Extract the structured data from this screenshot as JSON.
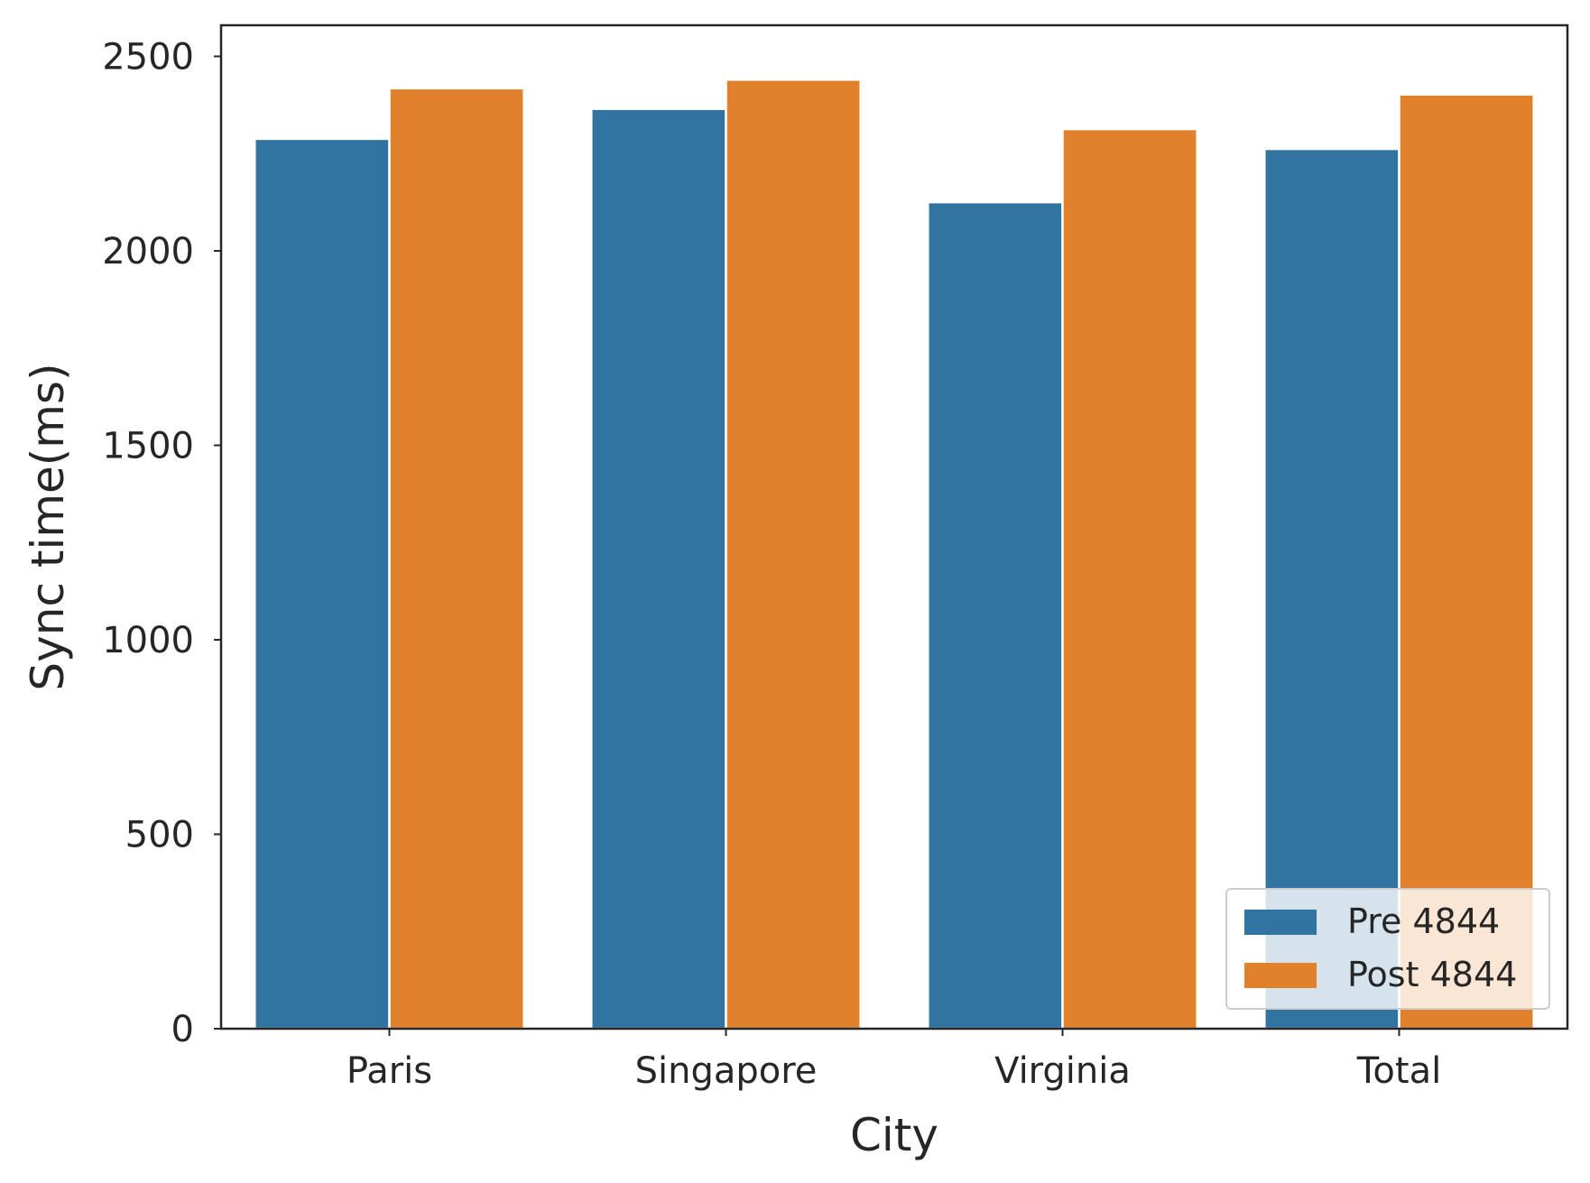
{
  "chart_data": {
    "type": "bar",
    "title": "",
    "xlabel": "City",
    "ylabel": "Sync time(ms)",
    "categories": [
      "Paris",
      "Singapore",
      "Virginia",
      "Total"
    ],
    "series": [
      {
        "name": "Pre 4844",
        "color": "#3274a1",
        "values": [
          2288,
          2365,
          2125,
          2262
        ]
      },
      {
        "name": "Post 4844",
        "color": "#e1812c",
        "values": [
          2418,
          2440,
          2313,
          2402
        ]
      }
    ],
    "ylim": [
      0,
      2580
    ],
    "yticks": [
      0,
      500,
      1000,
      1500,
      2000,
      2500
    ],
    "grid": false,
    "legend": {
      "position": "lower-right"
    }
  }
}
